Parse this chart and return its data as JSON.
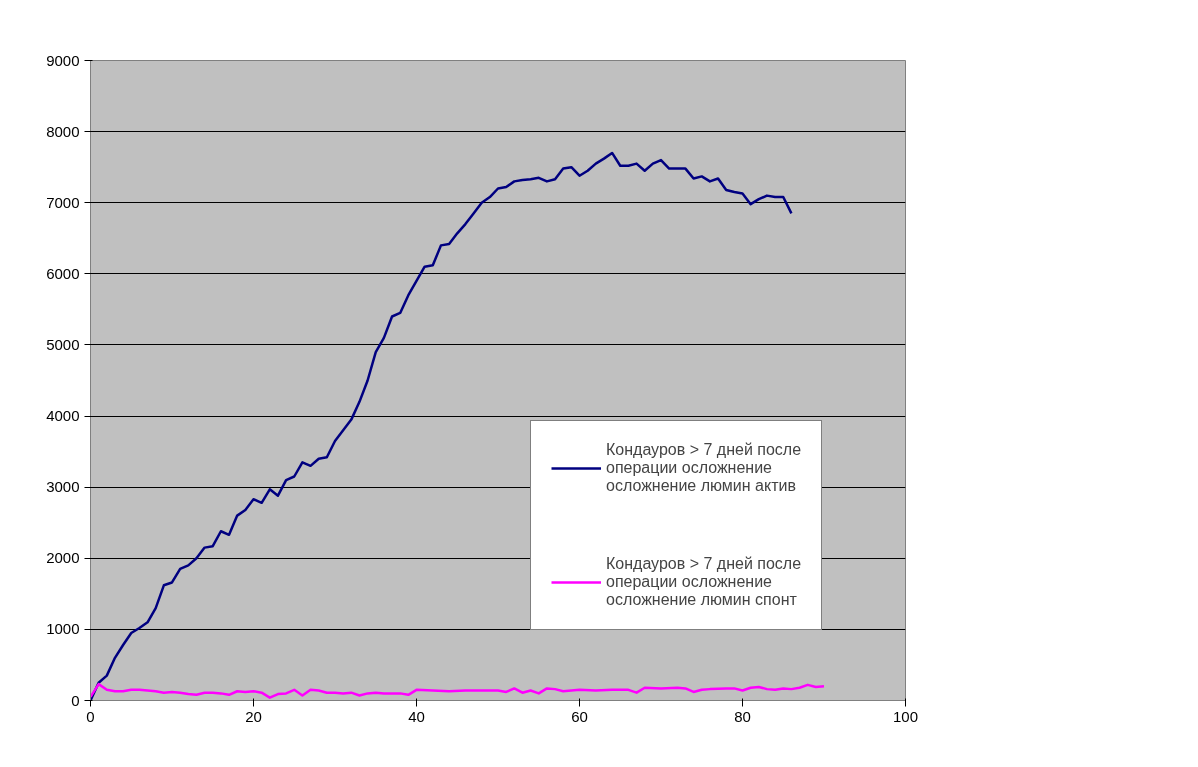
{
  "chart_data": {
    "type": "line",
    "xlim": [
      0,
      100
    ],
    "xticks": [
      0,
      20,
      40,
      60,
      80,
      100
    ],
    "ylim": [
      0,
      9000
    ],
    "yticks": [
      0,
      1000,
      2000,
      3000,
      4000,
      5000,
      6000,
      7000,
      8000,
      9000
    ],
    "grid": "y",
    "legend": "right",
    "marker": "none",
    "line_style": "solid",
    "series": [
      {
        "name": "Кондауров > 7 дней после операции осложнение осложнение люмин актив",
        "color": "#000080",
        "x": [
          0,
          1,
          2,
          3,
          4,
          5,
          6,
          7,
          8,
          9,
          10,
          11,
          12,
          13,
          14,
          15,
          16,
          17,
          18,
          19,
          20,
          21,
          22,
          23,
          24,
          25,
          26,
          27,
          28,
          29,
          30,
          31,
          32,
          33,
          34,
          35,
          36,
          37,
          38,
          39,
          40,
          41,
          42,
          43,
          44,
          45,
          46,
          47,
          48,
          49,
          50,
          51,
          52,
          53,
          54,
          55,
          56,
          57,
          58,
          59,
          60,
          61,
          62,
          63,
          64,
          65,
          66,
          67,
          68,
          69,
          70,
          71,
          72,
          73,
          74,
          75,
          76,
          77,
          78,
          79,
          80,
          81,
          82,
          83,
          84,
          85,
          86
        ],
        "values": [
          0,
          250,
          350,
          600,
          780,
          950,
          1020,
          1100,
          1300,
          1620,
          1660,
          1850,
          1900,
          2000,
          2150,
          2170,
          2380,
          2330,
          2600,
          2680,
          2830,
          2780,
          2970,
          2880,
          3100,
          3150,
          3350,
          3300,
          3400,
          3420,
          3650,
          3800,
          3950,
          4200,
          4500,
          4900,
          5100,
          5400,
          5450,
          5700,
          5900,
          6100,
          6120,
          6400,
          6420,
          6570,
          6700,
          6850,
          7000,
          7080,
          7200,
          7220,
          7300,
          7320,
          7330,
          7350,
          7300,
          7330,
          7480,
          7500,
          7380,
          7450,
          7550,
          7620,
          7700,
          7520,
          7520,
          7550,
          7450,
          7550,
          7600,
          7480,
          7480,
          7480,
          7340,
          7370,
          7300,
          7340,
          7180,
          7150,
          7130,
          6980,
          7050,
          7100,
          7080,
          7080,
          6850
        ]
      },
      {
        "name": "Кондауров > 7 дней после операции осложнение осложнение люмин спонт",
        "color": "#ff00ff",
        "x": [
          0,
          1,
          2,
          3,
          4,
          5,
          6,
          7,
          8,
          9,
          10,
          11,
          12,
          13,
          14,
          15,
          16,
          17,
          18,
          19,
          20,
          21,
          22,
          23,
          24,
          25,
          26,
          27,
          28,
          29,
          30,
          31,
          32,
          33,
          34,
          35,
          36,
          37,
          38,
          39,
          40,
          42,
          44,
          46,
          48,
          50,
          51,
          52,
          53,
          54,
          55,
          56,
          57,
          58,
          59,
          60,
          62,
          64,
          66,
          67,
          68,
          70,
          72,
          73,
          74,
          75,
          76,
          78,
          79,
          80,
          81,
          82,
          83,
          84,
          85,
          86,
          87,
          88,
          89,
          90
        ],
        "values": [
          50,
          230,
          150,
          130,
          130,
          150,
          150,
          140,
          130,
          110,
          120,
          110,
          90,
          80,
          110,
          110,
          100,
          80,
          130,
          120,
          130,
          110,
          40,
          90,
          100,
          150,
          70,
          150,
          140,
          110,
          110,
          100,
          110,
          70,
          100,
          110,
          100,
          100,
          100,
          80,
          150,
          140,
          130,
          140,
          140,
          140,
          120,
          170,
          110,
          140,
          100,
          170,
          160,
          130,
          140,
          150,
          140,
          150,
          150,
          110,
          180,
          170,
          180,
          170,
          120,
          150,
          160,
          170,
          170,
          140,
          180,
          190,
          160,
          150,
          170,
          160,
          180,
          220,
          190,
          200
        ]
      }
    ]
  }
}
